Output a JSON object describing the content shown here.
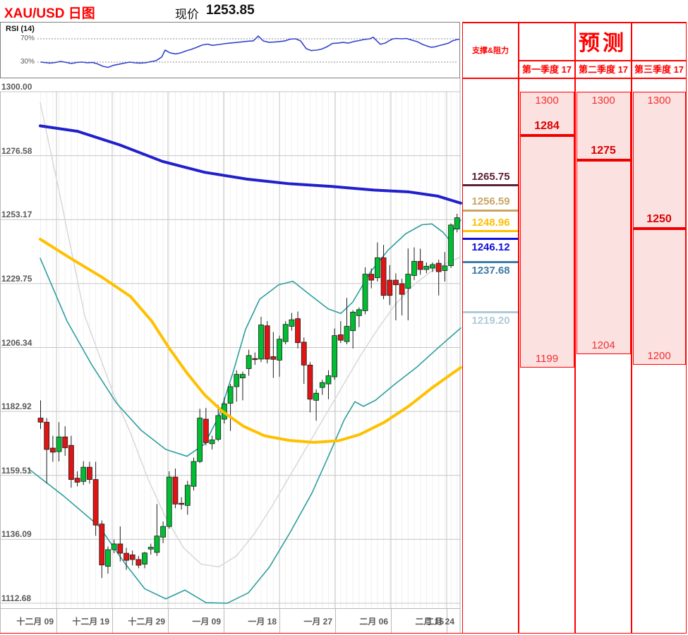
{
  "header": {
    "title": "XAU/USD 日图",
    "price_label": "现价",
    "price_value": "1253.85"
  },
  "rsi": {
    "label": "RSI (14)",
    "upper_label": "70%",
    "lower_label": "30%",
    "upper": 70,
    "lower": 30,
    "color": "#3344cc",
    "series": [
      [
        57,
        30
      ],
      [
        70,
        28.2
      ],
      [
        78,
        29.4
      ],
      [
        85,
        31.2
      ],
      [
        93,
        29.4
      ],
      [
        100,
        27.6
      ],
      [
        108,
        29.4
      ],
      [
        115,
        30
      ],
      [
        123,
        28.8
      ],
      [
        130,
        29.4
      ],
      [
        137,
        27
      ],
      [
        145,
        22.7
      ],
      [
        152,
        20.9
      ],
      [
        160,
        24.5
      ],
      [
        168,
        26.4
      ],
      [
        175,
        28.2
      ],
      [
        183,
        30
      ],
      [
        190,
        28.8
      ],
      [
        197,
        28.2
      ],
      [
        205,
        28.8
      ],
      [
        212,
        30.6
      ],
      [
        220,
        32.4
      ],
      [
        228,
        38.5
      ],
      [
        233,
        50.6
      ],
      [
        240,
        45.8
      ],
      [
        248,
        44
      ],
      [
        255,
        45.8
      ],
      [
        263,
        49.4
      ],
      [
        270,
        51.8
      ],
      [
        278,
        55.5
      ],
      [
        285,
        59.1
      ],
      [
        293,
        60.9
      ],
      [
        300,
        58.7
      ],
      [
        310,
        60.3
      ],
      [
        320,
        62.1
      ],
      [
        330,
        63.3
      ],
      [
        340,
        64.5
      ],
      [
        350,
        65.8
      ],
      [
        358,
        66.4
      ],
      [
        365,
        74.8
      ],
      [
        372,
        66.4
      ],
      [
        380,
        64
      ],
      [
        388,
        64.5
      ],
      [
        395,
        65.2
      ],
      [
        403,
        66.4
      ],
      [
        410,
        69.4
      ],
      [
        418,
        70
      ],
      [
        425,
        66.4
      ],
      [
        433,
        53
      ],
      [
        440,
        49.8
      ],
      [
        448,
        50.6
      ],
      [
        455,
        52.4
      ],
      [
        463,
        56.7
      ],
      [
        470,
        62.1
      ],
      [
        478,
        62.7
      ],
      [
        485,
        63.9
      ],
      [
        493,
        62.7
      ],
      [
        500,
        65.2
      ],
      [
        508,
        67
      ],
      [
        515,
        68.8
      ],
      [
        523,
        70
      ],
      [
        528,
        72.8
      ],
      [
        533,
        66.4
      ],
      [
        538,
        60.6
      ],
      [
        545,
        62.7
      ],
      [
        550,
        66.4
      ],
      [
        556,
        70
      ],
      [
        561,
        70.6
      ],
      [
        568,
        70
      ],
      [
        575,
        70.6
      ],
      [
        583,
        67.6
      ],
      [
        590,
        65.2
      ],
      [
        598,
        60.3
      ],
      [
        605,
        57.3
      ],
      [
        610,
        55.5
      ],
      [
        615,
        56.1
      ],
      [
        620,
        57.9
      ],
      [
        628,
        60.3
      ],
      [
        635,
        62.7
      ],
      [
        640,
        66.4
      ],
      [
        645,
        68.2
      ],
      [
        650,
        69.4
      ],
      [
        653,
        70.6
      ]
    ]
  },
  "chart_data": {
    "type": "candlestick",
    "symbol": "XAU/USD",
    "timeframe": "日图",
    "current_price": 1253.85,
    "grid": true,
    "y_axis": {
      "ticks": [
        1300.0,
        1276.58,
        1253.17,
        1229.75,
        1206.34,
        1182.92,
        1159.51,
        1136.09,
        1112.68
      ],
      "labels": [
        "1300.00",
        "1276.58",
        "1253.17",
        "1229.75",
        "1206.34",
        "1182.92",
        "1159.51",
        "1136.09",
        "1112.68"
      ]
    },
    "x_axis": {
      "labels": [
        "十二月 09",
        "十二月 19",
        "十二月 29",
        "一月 09",
        "一月 18",
        "一月 27",
        "二月 06",
        "二月 15",
        "二月 24"
      ],
      "boundaries": [
        80,
        159,
        238,
        317,
        396,
        475,
        554,
        633,
        648
      ]
    },
    "candle_colors": {
      "up": "#00be32",
      "down": "#e01414",
      "outline": "#1c1c1c"
    },
    "candles": [
      [
        1180.5,
        1187,
        1176.5,
        1179
      ],
      [
        1179,
        1180.5,
        1156.5,
        1169
      ],
      [
        1169.5,
        1174,
        1164.5,
        1168
      ],
      [
        1168.2,
        1179,
        1164.6,
        1173.6
      ],
      [
        1173.6,
        1177.5,
        1166.7,
        1169.6
      ],
      [
        1170.5,
        1174,
        1155,
        1158
      ],
      [
        1158.5,
        1161,
        1155.5,
        1157
      ],
      [
        1157.3,
        1164.7,
        1156,
        1162.5
      ],
      [
        1162.5,
        1164.5,
        1156.5,
        1158
      ],
      [
        1158,
        1164.5,
        1137.4,
        1141.3
      ],
      [
        1141.7,
        1143,
        1121.9,
        1126.7
      ],
      [
        1126.2,
        1133.5,
        1123.5,
        1132.3
      ],
      [
        1132.3,
        1136,
        1131,
        1134.4
      ],
      [
        1134.4,
        1140.8,
        1128,
        1131
      ],
      [
        1131,
        1133,
        1124.9,
        1128.4
      ],
      [
        1130.4,
        1132,
        1126.5,
        1128.7
      ],
      [
        1128.7,
        1130,
        1125.5,
        1126.6
      ],
      [
        1127,
        1131.5,
        1125.5,
        1131.1
      ],
      [
        1132.5,
        1134.5,
        1130.5,
        1133.2
      ],
      [
        1131.3,
        1149,
        1130,
        1137.3
      ],
      [
        1136.9,
        1142.6,
        1134.7,
        1140.8
      ],
      [
        1140.8,
        1161,
        1140,
        1158.9
      ],
      [
        1158.9,
        1162,
        1147.5,
        1149
      ],
      [
        1149.3,
        1151.5,
        1147,
        1148.9
      ],
      [
        1148.5,
        1157.5,
        1145.1,
        1155.9
      ],
      [
        1155.5,
        1166,
        1154,
        1164.6
      ],
      [
        1164.6,
        1183.9,
        1164,
        1180.5
      ],
      [
        1180.1,
        1184.2,
        1170.5,
        1171.5
      ],
      [
        1171.1,
        1174,
        1169,
        1172.5
      ],
      [
        1172.7,
        1185.3,
        1172,
        1181.4
      ],
      [
        1180.1,
        1188,
        1178.5,
        1185.7
      ],
      [
        1185.9,
        1193,
        1175.8,
        1192
      ],
      [
        1192,
        1198,
        1186.5,
        1196.5
      ],
      [
        1195.2,
        1197.5,
        1187,
        1196.5
      ],
      [
        1198.6,
        1205.5,
        1196,
        1203.4
      ],
      [
        1202.3,
        1204.5,
        1200,
        1202.2
      ],
      [
        1202.1,
        1217.6,
        1201,
        1214.6
      ],
      [
        1214.3,
        1216,
        1200.5,
        1202.1
      ],
      [
        1203,
        1212,
        1195.2,
        1202
      ],
      [
        1201.7,
        1210.7,
        1195.6,
        1209.4
      ],
      [
        1208.5,
        1216,
        1207.5,
        1214.8
      ],
      [
        1214.1,
        1219,
        1212.5,
        1216.5
      ],
      [
        1216.9,
        1219.5,
        1206,
        1208.1
      ],
      [
        1208.3,
        1210,
        1193,
        1199.9
      ],
      [
        1199.9,
        1201,
        1182.6,
        1187.4
      ],
      [
        1187,
        1191,
        1179.5,
        1189.6
      ],
      [
        1191.7,
        1194.5,
        1189,
        1193.5
      ],
      [
        1193,
        1198,
        1187.4,
        1196
      ],
      [
        1195.6,
        1213.3,
        1194.5,
        1210.7
      ],
      [
        1211,
        1216,
        1208,
        1209
      ],
      [
        1208.5,
        1224.5,
        1207.5,
        1214.1
      ],
      [
        1212.5,
        1220,
        1206,
        1219.3
      ],
      [
        1218,
        1221,
        1213.8,
        1220.2
      ],
      [
        1219.8,
        1235.7,
        1218.5,
        1233.2
      ],
      [
        1233.2,
        1235.3,
        1228,
        1231
      ],
      [
        1231.9,
        1244.8,
        1230.5,
        1239.2
      ],
      [
        1239.2,
        1243.9,
        1224,
        1225.4
      ],
      [
        1231,
        1236.5,
        1221.9,
        1225.4
      ],
      [
        1231,
        1233.5,
        1216.3,
        1229.3
      ],
      [
        1229.7,
        1231.5,
        1218.1,
        1225.8
      ],
      [
        1228,
        1242.6,
        1216.3,
        1233.2
      ],
      [
        1232.7,
        1243,
        1231,
        1237.9
      ],
      [
        1237.9,
        1242.5,
        1233,
        1234.9
      ],
      [
        1234.9,
        1237.5,
        1233.5,
        1236.1
      ],
      [
        1235.4,
        1237.5,
        1234,
        1236.7
      ],
      [
        1237.2,
        1238.5,
        1225.4,
        1234.1
      ],
      [
        1234.5,
        1241.3,
        1230.5,
        1236.2
      ],
      [
        1236.3,
        1251.8,
        1235.5,
        1251.2
      ],
      [
        1249.7,
        1255.3,
        1248.5,
        1253.85
      ]
    ],
    "overlays": [
      {
        "name": "middle-band-gray",
        "color": "#d8d8d8",
        "width": 1.5,
        "points": [
          [
            57,
            1296
          ],
          [
            85,
            1262
          ],
          [
            120,
            1218
          ],
          [
            160,
            1190
          ],
          [
            185,
            1175
          ],
          [
            210,
            1158
          ],
          [
            235,
            1144
          ],
          [
            260,
            1133
          ],
          [
            285,
            1127
          ],
          [
            310,
            1126
          ],
          [
            335,
            1130
          ],
          [
            360,
            1138
          ],
          [
            385,
            1148
          ],
          [
            410,
            1159
          ],
          [
            435,
            1170
          ],
          [
            460,
            1181
          ],
          [
            485,
            1192
          ],
          [
            510,
            1203
          ],
          [
            535,
            1213
          ],
          [
            560,
            1222
          ],
          [
            585,
            1229
          ],
          [
            610,
            1234
          ],
          [
            635,
            1237.5
          ],
          [
            653,
            1239.5
          ]
        ]
      },
      {
        "name": "lower-band-teal",
        "color": "#2f9e9e",
        "width": 1.6,
        "points": [
          [
            40,
            1162
          ],
          [
            90,
            1152
          ],
          [
            140,
            1141
          ],
          [
            175,
            1128
          ],
          [
            205,
            1118
          ],
          [
            235,
            1114.3
          ],
          [
            262,
            1117.5
          ],
          [
            292,
            1112.9
          ],
          [
            322,
            1112.7
          ],
          [
            352,
            1116.5
          ],
          [
            382,
            1126
          ],
          [
            412,
            1139
          ],
          [
            442,
            1153
          ],
          [
            468,
            1168
          ],
          [
            488,
            1180
          ],
          [
            503,
            1186.5
          ],
          [
            515,
            1184.8
          ],
          [
            532,
            1187
          ],
          [
            560,
            1193
          ],
          [
            590,
            1199
          ],
          [
            620,
            1206
          ],
          [
            653,
            1213.5
          ]
        ]
      },
      {
        "name": "upper-band-teal",
        "color": "#2f9e9e",
        "width": 1.6,
        "points": [
          [
            57,
            1239
          ],
          [
            95,
            1216
          ],
          [
            130,
            1200
          ],
          [
            165,
            1186
          ],
          [
            200,
            1176
          ],
          [
            235,
            1169
          ],
          [
            265,
            1166.5
          ],
          [
            290,
            1171
          ],
          [
            310,
            1181
          ],
          [
            330,
            1197
          ],
          [
            348,
            1213
          ],
          [
            368,
            1224
          ],
          [
            395,
            1229.3
          ],
          [
            415,
            1230.6
          ],
          [
            440,
            1225.5
          ],
          [
            465,
            1220.5
          ],
          [
            483,
            1218.8
          ],
          [
            500,
            1223
          ],
          [
            525,
            1234
          ],
          [
            550,
            1242
          ],
          [
            575,
            1248
          ],
          [
            598,
            1251.3
          ],
          [
            612,
            1251.6
          ],
          [
            628,
            1248.5
          ],
          [
            636,
            1246
          ],
          [
            645,
            1250.5
          ],
          [
            653,
            1253
          ]
        ]
      },
      {
        "name": "ma-yellow",
        "color": "#ffc000",
        "width": 4,
        "points": [
          [
            57,
            1246
          ],
          [
            100,
            1239
          ],
          [
            145,
            1232
          ],
          [
            185,
            1225
          ],
          [
            215,
            1216
          ],
          [
            240,
            1206
          ],
          [
            265,
            1197
          ],
          [
            290,
            1189
          ],
          [
            315,
            1183
          ],
          [
            345,
            1177.5
          ],
          [
            375,
            1174
          ],
          [
            410,
            1172.3
          ],
          [
            445,
            1171.6
          ],
          [
            480,
            1172.2
          ],
          [
            510,
            1174.5
          ],
          [
            545,
            1179
          ],
          [
            580,
            1185
          ],
          [
            612,
            1191.5
          ],
          [
            638,
            1196.3
          ],
          [
            653,
            1199
          ]
        ]
      },
      {
        "name": "ma-blue",
        "color": "#2020cc",
        "width": 4,
        "points": [
          [
            57,
            1287.5
          ],
          [
            110,
            1285.5
          ],
          [
            170,
            1280.5
          ],
          [
            230,
            1274.5
          ],
          [
            290,
            1270.5
          ],
          [
            350,
            1268
          ],
          [
            410,
            1266.3
          ],
          [
            470,
            1265.3
          ],
          [
            530,
            1264
          ],
          [
            580,
            1263.3
          ],
          [
            620,
            1261.8
          ],
          [
            653,
            1259.2
          ]
        ]
      }
    ],
    "support_resistance": [
      {
        "label": "1265.75",
        "price": 1265.75,
        "color": "#5e2038",
        "label_position": "above"
      },
      {
        "label": "1256.59",
        "price": 1256.59,
        "color": "#c9a566",
        "label_position": "above"
      },
      {
        "label": "1248.96",
        "price": 1248.96,
        "color": "#ffc000",
        "label_position": "above"
      },
      {
        "label": "1246.12",
        "price": 1246.12,
        "color": "#0f0fd9",
        "label_position": "below"
      },
      {
        "label": "1237.68",
        "price": 1237.68,
        "color": "#3e7ca8",
        "label_position": "below"
      },
      {
        "label": "1219.20",
        "price": 1219.2,
        "color": "#afcbd9",
        "label_position": "below"
      }
    ],
    "forecast": {
      "title": "预测",
      "column_header": "支撑&阻力",
      "box_top_price": 1300,
      "quarters": [
        {
          "label": "第一季度 17",
          "high": 1300,
          "key": 1284,
          "low": 1199
        },
        {
          "label": "第二季度 17",
          "high": 1300,
          "key": 1275,
          "low": 1204
        },
        {
          "label": "第三季度 17",
          "high": 1300,
          "key": 1250,
          "low": 1200
        }
      ]
    }
  }
}
